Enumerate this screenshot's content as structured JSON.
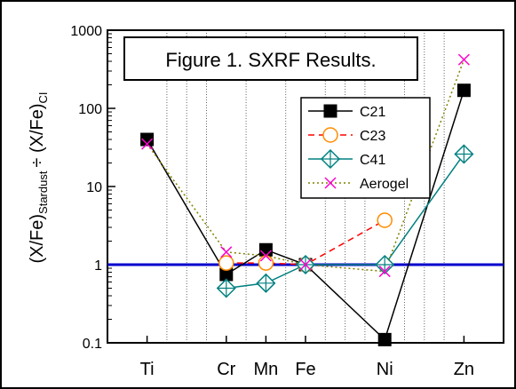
{
  "chart_data": {
    "type": "line",
    "title": "Figure 1. SXRF Results.",
    "ylabel": {
      "main": "(X/Fe)",
      "sub1": "Stardust",
      "op": "÷ (X/Fe)",
      "sub2": "CI"
    },
    "xlabel": "",
    "yscale": "log",
    "ylim": [
      0.1,
      1000
    ],
    "y_ticks": [
      {
        "value": 0.1,
        "label": "0.1"
      },
      {
        "value": 1,
        "label": "1"
      },
      {
        "value": 10,
        "label": "10"
      },
      {
        "value": 100,
        "label": "100"
      },
      {
        "value": 1000,
        "label": "1000"
      }
    ],
    "categories": [
      "Ti",
      "Cr",
      "Mn",
      "Fe",
      "Ni",
      "Zn"
    ],
    "x_positions": [
      22,
      24,
      25,
      26,
      28,
      30
    ],
    "xlim": [
      21,
      31
    ],
    "vgrid": [
      22.5,
      23,
      23.5,
      24.5,
      25.5,
      26.5,
      27,
      27.5,
      28.5,
      29,
      29.5
    ],
    "reference_line": {
      "value": 1,
      "color": "#0000cc"
    },
    "legend": {
      "position": "right-middle"
    },
    "series": [
      {
        "name": "C21",
        "values": [
          40,
          0.75,
          1.55,
          1.0,
          0.11,
          170
        ],
        "color": "#000000",
        "line": "solid",
        "marker": "square-filled"
      },
      {
        "name": "C23",
        "values": [
          null,
          1.05,
          1.05,
          1.0,
          3.7,
          null
        ],
        "color": "#ff0000",
        "markerColor": "#ff8c00",
        "line": "dashed",
        "marker": "circle-open"
      },
      {
        "name": "C41",
        "values": [
          null,
          0.5,
          0.58,
          1.0,
          1.0,
          26
        ],
        "color": "#008080",
        "line": "solid",
        "marker": "diamond-cross"
      },
      {
        "name": "Aerogel",
        "values": [
          35,
          1.45,
          1.3,
          1.0,
          0.82,
          420
        ],
        "color": "#808000",
        "markerColor": "#ff00cc",
        "line": "dotted",
        "marker": "x"
      }
    ]
  }
}
